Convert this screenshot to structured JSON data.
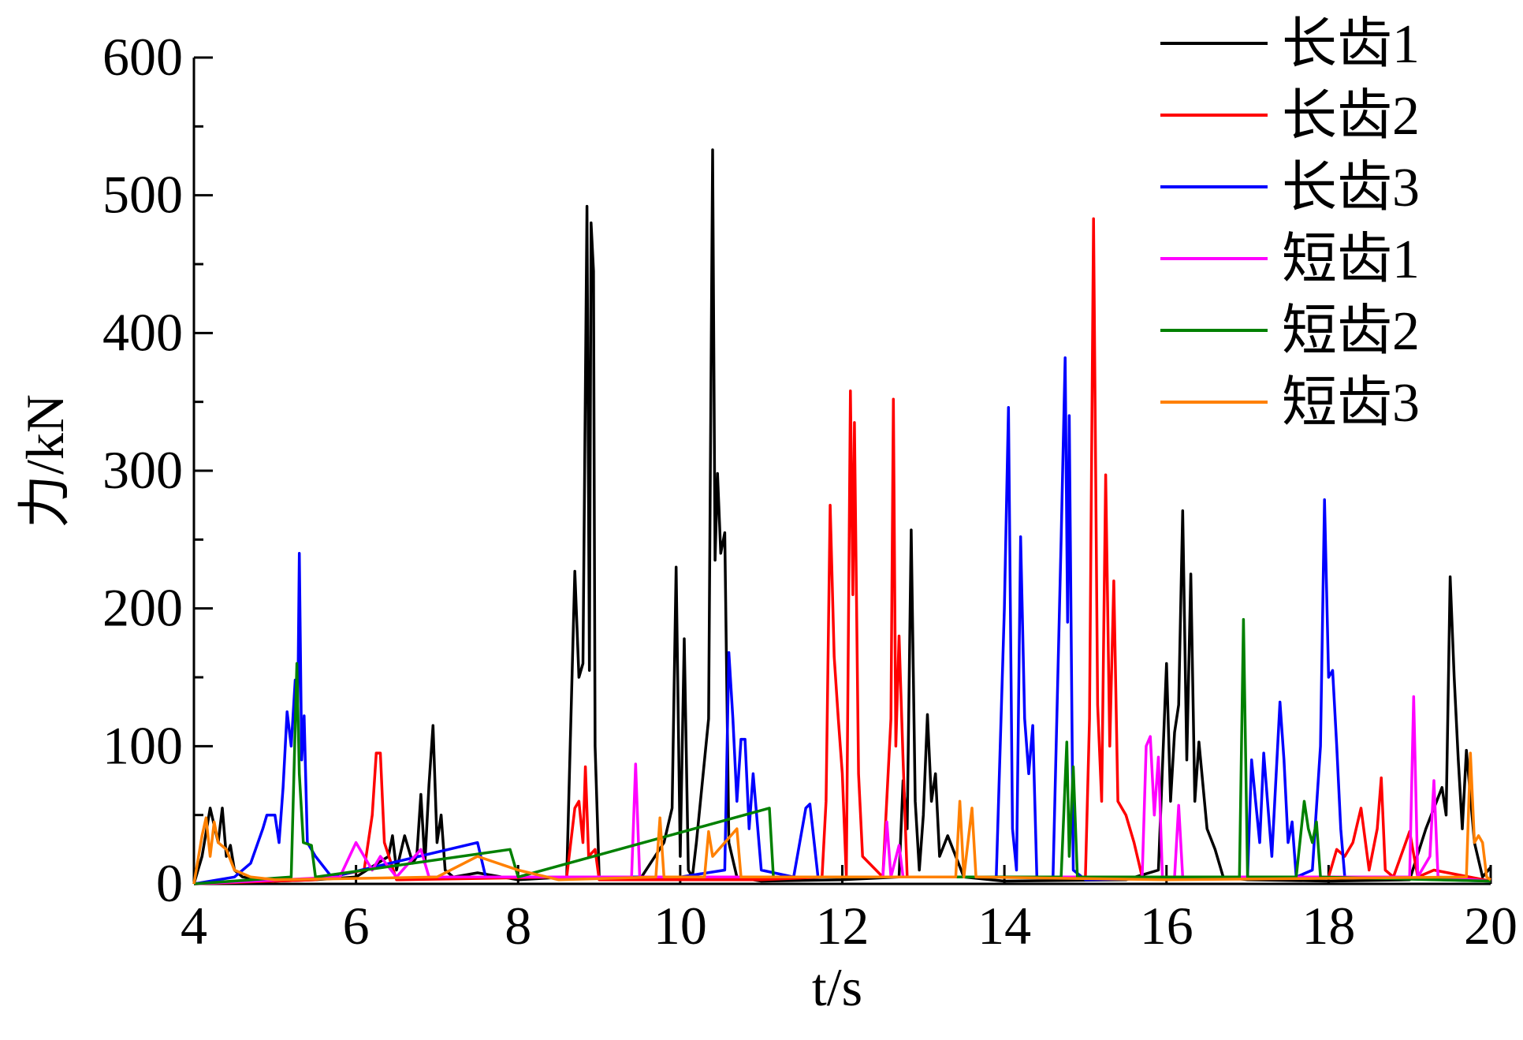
{
  "chart_data": {
    "type": "line",
    "xlabel": "t/s",
    "ylabel": "力/kN",
    "xlim": [
      4,
      20
    ],
    "xticks": [
      4,
      6,
      8,
      10,
      12,
      14,
      16,
      18,
      20
    ],
    "ylim": [
      0,
      600
    ],
    "yticks": [
      0,
      100,
      200,
      300,
      400,
      500,
      600
    ],
    "legend": "upper right",
    "grid": false,
    "series": [
      {
        "name": "长齿1",
        "color": "#000000",
        "x": [
          4,
          4.1,
          4.2,
          4.3,
          4.35,
          4.4,
          4.45,
          4.5,
          4.6,
          5,
          5.5,
          6,
          6.4,
          6.45,
          6.5,
          6.6,
          6.7,
          6.75,
          6.8,
          6.85,
          6.9,
          6.95,
          7.0,
          7.05,
          7.1,
          7.2,
          7.5,
          8,
          8.6,
          8.7,
          8.75,
          8.8,
          8.85,
          8.88,
          8.9,
          8.93,
          8.95,
          9.0,
          9.5,
          9.8,
          9.9,
          9.95,
          10.0,
          10.05,
          10.1,
          10.15,
          10.2,
          10.35,
          10.4,
          10.43,
          10.46,
          10.5,
          10.55,
          10.6,
          10.7,
          11,
          12,
          12.7,
          12.75,
          12.8,
          12.85,
          12.9,
          12.95,
          13,
          13.05,
          13.1,
          13.15,
          13.2,
          13.3,
          13.5,
          14,
          15.5,
          15.9,
          16.0,
          16.05,
          16.1,
          16.15,
          16.2,
          16.25,
          16.3,
          16.35,
          16.4,
          16.5,
          16.6,
          16.7,
          17,
          18,
          19,
          19.2,
          19.4,
          19.45,
          19.5,
          19.55,
          19.6,
          19.65,
          19.7,
          19.8,
          19.9,
          20
        ],
        "values": [
          0,
          20,
          55,
          30,
          55,
          20,
          28,
          10,
          5,
          2,
          3,
          5,
          20,
          35,
          10,
          35,
          15,
          20,
          65,
          15,
          72,
          115,
          30,
          50,
          10,
          5,
          8,
          3,
          5,
          227,
          150,
          160,
          492,
          155,
          480,
          445,
          100,
          5,
          3,
          30,
          55,
          230,
          20,
          178,
          10,
          5,
          30,
          120,
          533,
          235,
          298,
          240,
          255,
          30,
          5,
          2,
          3,
          5,
          75,
          40,
          257,
          60,
          10,
          50,
          123,
          60,
          80,
          20,
          35,
          5,
          2,
          3,
          10,
          160,
          60,
          110,
          130,
          271,
          90,
          225,
          60,
          103,
          40,
          25,
          5,
          3,
          2,
          3,
          40,
          70,
          50,
          223,
          150,
          90,
          40,
          97,
          30,
          5,
          12
        ]
      },
      {
        "name": "长齿2",
        "color": "#ff0000",
        "x": [
          4,
          5.5,
          6.1,
          6.2,
          6.25,
          6.3,
          6.35,
          6.5,
          8.6,
          8.7,
          8.75,
          8.8,
          8.83,
          8.87,
          8.95,
          9.0,
          11,
          11.75,
          11.8,
          11.85,
          11.9,
          11.95,
          12.0,
          12.05,
          12.1,
          12.13,
          12.15,
          12.2,
          12.25,
          12.5,
          12.6,
          12.63,
          12.66,
          12.7,
          12.75,
          12.8,
          15.0,
          15.05,
          15.1,
          15.15,
          15.2,
          15.25,
          15.3,
          15.35,
          15.4,
          15.5,
          15.6,
          15.7,
          18,
          18.1,
          18.2,
          18.3,
          18.4,
          18.5,
          18.6,
          18.65,
          18.7,
          18.8,
          19,
          19.1,
          19.3,
          20
        ],
        "values": [
          0,
          3,
          10,
          50,
          95,
          95,
          30,
          3,
          5,
          55,
          60,
          30,
          85,
          20,
          25,
          3,
          3,
          5,
          60,
          275,
          165,
          120,
          80,
          5,
          358,
          210,
          335,
          80,
          20,
          5,
          120,
          352,
          100,
          180,
          90,
          5,
          5,
          120,
          483,
          130,
          60,
          297,
          100,
          220,
          60,
          50,
          30,
          5,
          5,
          25,
          20,
          30,
          55,
          10,
          40,
          77,
          10,
          5,
          38,
          5,
          10,
          2
        ]
      },
      {
        "name": "长齿3",
        "color": "#0000ff",
        "x": [
          4,
          4.5,
          4.7,
          4.85,
          4.9,
          5.0,
          5.05,
          5.1,
          5.15,
          5.2,
          5.25,
          5.28,
          5.3,
          5.33,
          5.36,
          5.4,
          5.5,
          5.7,
          7.5,
          7.6,
          10,
          10.55,
          10.6,
          10.65,
          10.7,
          10.75,
          10.8,
          10.85,
          10.9,
          11,
          11.4,
          11.55,
          11.6,
          11.7,
          13.9,
          14.0,
          14.05,
          14.1,
          14.15,
          14.2,
          14.25,
          14.3,
          14.35,
          14.4,
          14.6,
          14.7,
          14.75,
          14.78,
          14.8,
          14.85,
          15,
          17,
          17.05,
          17.1,
          17.15,
          17.2,
          17.3,
          17.4,
          17.45,
          17.5,
          17.55,
          17.6,
          17.8,
          17.9,
          17.95,
          18.0,
          18.05,
          18.1,
          18.15,
          18.2,
          20
        ],
        "values": [
          0,
          5,
          15,
          40,
          50,
          50,
          30,
          70,
          125,
          100,
          148,
          120,
          240,
          90,
          122,
          30,
          20,
          5,
          30,
          5,
          5,
          10,
          168,
          120,
          60,
          105,
          105,
          40,
          80,
          10,
          5,
          55,
          58,
          5,
          5,
          200,
          346,
          40,
          10,
          252,
          120,
          80,
          115,
          5,
          5,
          250,
          382,
          190,
          340,
          10,
          3,
          5,
          90,
          60,
          30,
          95,
          20,
          132,
          90,
          30,
          45,
          5,
          10,
          100,
          279,
          150,
          155,
          100,
          40,
          5,
          2
        ]
      },
      {
        "name": "短齿1",
        "color": "#ff00ff",
        "x": [
          4,
          5.8,
          6.0,
          6.2,
          6.3,
          6.5,
          6.8,
          6.9,
          9.4,
          9.45,
          9.5,
          12.5,
          12.55,
          12.6,
          12.7,
          12.75,
          15.7,
          15.75,
          15.8,
          15.85,
          15.9,
          15.95,
          16.1,
          16.15,
          16.2,
          19.0,
          19.05,
          19.1,
          19.25,
          19.3,
          19.35,
          20
        ],
        "values": [
          0,
          5,
          30,
          10,
          20,
          5,
          25,
          5,
          5,
          87,
          5,
          5,
          45,
          5,
          28,
          5,
          5,
          100,
          107,
          50,
          92,
          5,
          5,
          57,
          5,
          5,
          136,
          5,
          20,
          75,
          5,
          2
        ]
      },
      {
        "name": "短齿2",
        "color": "#008000",
        "x": [
          4,
          5.2,
          5.27,
          5.3,
          5.35,
          5.45,
          5.5,
          7.9,
          8.0,
          11.1,
          11.15,
          14.7,
          14.77,
          14.8,
          14.85,
          14.9,
          16.9,
          16.95,
          17.0,
          17.6,
          17.7,
          17.75,
          17.8,
          17.85,
          17.9,
          20
        ],
        "values": [
          0,
          5,
          160,
          80,
          30,
          28,
          5,
          25,
          5,
          55,
          5,
          5,
          103,
          20,
          85,
          5,
          5,
          192,
          5,
          5,
          60,
          40,
          30,
          45,
          5,
          2
        ]
      },
      {
        "name": "短齿3",
        "color": "#ff8000",
        "x": [
          4,
          4.1,
          4.15,
          4.2,
          4.25,
          4.3,
          4.4,
          4.5,
          4.7,
          5,
          7,
          7.5,
          8,
          8.5,
          9.7,
          9.75,
          9.8,
          10.3,
          10.35,
          10.4,
          10.7,
          10.75,
          13.4,
          13.45,
          13.5,
          13.6,
          13.65,
          16,
          19.7,
          19.75,
          19.8,
          19.85,
          19.9,
          19.95,
          20
        ],
        "values": [
          0,
          35,
          48,
          20,
          45,
          30,
          25,
          10,
          5,
          3,
          5,
          20,
          10,
          3,
          5,
          48,
          5,
          5,
          38,
          20,
          40,
          5,
          5,
          60,
          5,
          55,
          5,
          3,
          5,
          95,
          30,
          35,
          30,
          5,
          3
        ]
      }
    ]
  }
}
